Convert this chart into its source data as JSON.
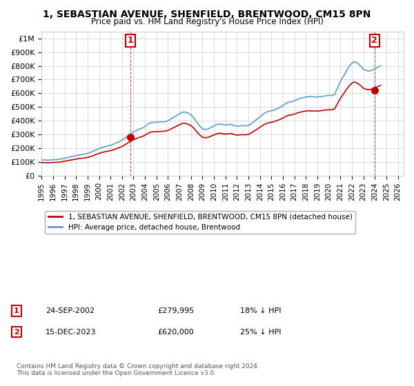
{
  "title": "1, SEBASTIAN AVENUE, SHENFIELD, BRENTWOOD, CM15 8PN",
  "subtitle": "Price paid vs. HM Land Registry's House Price Index (HPI)",
  "ylabel": "",
  "xlim_start": 1995.0,
  "xlim_end": 2026.5,
  "ylim_min": 0,
  "ylim_max": 1050000,
  "yticks": [
    0,
    100000,
    200000,
    300000,
    400000,
    500000,
    600000,
    700000,
    800000,
    900000,
    1000000
  ],
  "ytick_labels": [
    "£0",
    "£100K",
    "£200K",
    "£300K",
    "£400K",
    "£500K",
    "£600K",
    "£700K",
    "£800K",
    "£900K",
    "£1M"
  ],
  "xticks": [
    1995,
    1996,
    1997,
    1998,
    1999,
    2000,
    2001,
    2002,
    2003,
    2004,
    2005,
    2006,
    2007,
    2008,
    2009,
    2010,
    2011,
    2012,
    2013,
    2014,
    2015,
    2016,
    2017,
    2018,
    2019,
    2020,
    2021,
    2022,
    2023,
    2024,
    2025,
    2026
  ],
  "hpi_color": "#5b9bd5",
  "price_color": "#c00000",
  "marker_color": "#c00000",
  "annotation_box_color": "#c00000",
  "grid_color": "#cccccc",
  "background_color": "#ffffff",
  "legend_label_red": "1, SEBASTIAN AVENUE, SHENFIELD, BRENTWOOD, CM15 8PN (detached house)",
  "legend_label_blue": "HPI: Average price, detached house, Brentwood",
  "sale1_label": "1",
  "sale1_date": "24-SEP-2002",
  "sale1_price": "£279,995",
  "sale1_hpi": "18% ↓ HPI",
  "sale1_x": 2002.73,
  "sale1_y": 279995,
  "sale2_label": "2",
  "sale2_date": "15-DEC-2023",
  "sale2_price": "£620,000",
  "sale2_hpi": "25% ↓ HPI",
  "sale2_x": 2023.96,
  "sale2_y": 620000,
  "copyright_text": "Contains HM Land Registry data © Crown copyright and database right 2024.\nThis data is licensed under the Open Government Licence v3.0.",
  "hpi_data": {
    "x": [
      1995.0,
      1995.25,
      1995.5,
      1995.75,
      1996.0,
      1996.25,
      1996.5,
      1996.75,
      1997.0,
      1997.25,
      1997.5,
      1997.75,
      1998.0,
      1998.25,
      1998.5,
      1998.75,
      1999.0,
      1999.25,
      1999.5,
      1999.75,
      2000.0,
      2000.25,
      2000.5,
      2000.75,
      2001.0,
      2001.25,
      2001.5,
      2001.75,
      2002.0,
      2002.25,
      2002.5,
      2002.75,
      2003.0,
      2003.25,
      2003.5,
      2003.75,
      2004.0,
      2004.25,
      2004.5,
      2004.75,
      2005.0,
      2005.25,
      2005.5,
      2005.75,
      2006.0,
      2006.25,
      2006.5,
      2006.75,
      2007.0,
      2007.25,
      2007.5,
      2007.75,
      2008.0,
      2008.25,
      2008.5,
      2008.75,
      2009.0,
      2009.25,
      2009.5,
      2009.75,
      2010.0,
      2010.25,
      2010.5,
      2010.75,
      2011.0,
      2011.25,
      2011.5,
      2011.75,
      2012.0,
      2012.25,
      2012.5,
      2012.75,
      2013.0,
      2013.25,
      2013.5,
      2013.75,
      2014.0,
      2014.25,
      2014.5,
      2014.75,
      2015.0,
      2015.25,
      2015.5,
      2015.75,
      2016.0,
      2016.25,
      2016.5,
      2016.75,
      2017.0,
      2017.25,
      2017.5,
      2017.75,
      2018.0,
      2018.25,
      2018.5,
      2018.75,
      2019.0,
      2019.25,
      2019.5,
      2019.75,
      2020.0,
      2020.25,
      2020.5,
      2020.75,
      2021.0,
      2021.25,
      2021.5,
      2021.75,
      2022.0,
      2022.25,
      2022.5,
      2022.75,
      2023.0,
      2023.25,
      2023.5,
      2023.75,
      2024.0,
      2024.25,
      2024.5
    ],
    "y": [
      113000,
      114000,
      112000,
      113000,
      115000,
      116000,
      118000,
      121000,
      126000,
      131000,
      136000,
      140000,
      145000,
      150000,
      153000,
      156000,
      161000,
      168000,
      177000,
      187000,
      196000,
      204000,
      210000,
      215000,
      220000,
      228000,
      237000,
      247000,
      258000,
      272000,
      288000,
      305000,
      318000,
      328000,
      338000,
      345000,
      358000,
      375000,
      385000,
      388000,
      388000,
      390000,
      392000,
      393000,
      400000,
      412000,
      425000,
      438000,
      450000,
      462000,
      463000,
      455000,
      443000,
      420000,
      390000,
      362000,
      340000,
      335000,
      340000,
      350000,
      362000,
      372000,
      375000,
      372000,
      368000,
      372000,
      372000,
      365000,
      358000,
      362000,
      363000,
      362000,
      365000,
      378000,
      395000,
      412000,
      428000,
      445000,
      460000,
      468000,
      472000,
      478000,
      488000,
      498000,
      510000,
      525000,
      535000,
      538000,
      545000,
      555000,
      563000,
      568000,
      572000,
      576000,
      576000,
      573000,
      572000,
      575000,
      578000,
      582000,
      585000,
      582000,
      592000,
      640000,
      685000,
      722000,
      760000,
      795000,
      820000,
      830000,
      818000,
      800000,
      775000,
      765000,
      762000,
      768000,
      778000,
      790000,
      800000
    ]
  },
  "price_line_data": {
    "x": [
      1995.0,
      1995.25,
      1995.5,
      1995.75,
      1996.0,
      1996.25,
      1996.5,
      1996.75,
      1997.0,
      1997.25,
      1997.5,
      1997.75,
      1998.0,
      1998.25,
      1998.5,
      1998.75,
      1999.0,
      1999.25,
      1999.5,
      1999.75,
      2000.0,
      2000.25,
      2000.5,
      2000.75,
      2001.0,
      2001.25,
      2001.5,
      2001.75,
      2002.0,
      2002.25,
      2002.5,
      2002.75,
      2003.0,
      2003.25,
      2003.5,
      2003.75,
      2004.0,
      2004.25,
      2004.5,
      2004.75,
      2005.0,
      2005.25,
      2005.5,
      2005.75,
      2006.0,
      2006.25,
      2006.5,
      2006.75,
      2007.0,
      2007.25,
      2007.5,
      2007.75,
      2008.0,
      2008.25,
      2008.5,
      2008.75,
      2009.0,
      2009.25,
      2009.5,
      2009.75,
      2010.0,
      2010.25,
      2010.5,
      2010.75,
      2011.0,
      2011.25,
      2011.5,
      2011.75,
      2012.0,
      2012.25,
      2012.5,
      2012.75,
      2013.0,
      2013.25,
      2013.5,
      2013.75,
      2014.0,
      2014.25,
      2014.5,
      2014.75,
      2015.0,
      2015.25,
      2015.5,
      2015.75,
      2016.0,
      2016.25,
      2016.5,
      2016.75,
      2017.0,
      2017.25,
      2017.5,
      2017.75,
      2018.0,
      2018.25,
      2018.5,
      2018.75,
      2019.0,
      2019.25,
      2019.5,
      2019.75,
      2020.0,
      2020.25,
      2020.5,
      2020.75,
      2021.0,
      2021.25,
      2021.5,
      2021.75,
      2022.0,
      2022.25,
      2022.5,
      2022.75,
      2023.0,
      2023.25,
      2023.5,
      2023.75,
      2024.0,
      2024.25,
      2024.5
    ],
    "y": [
      93000,
      94000,
      92000,
      93000,
      95000,
      96000,
      97000,
      100000,
      104000,
      108000,
      112000,
      115000,
      119000,
      123000,
      126000,
      128000,
      132000,
      138000,
      145000,
      154000,
      161000,
      168000,
      173000,
      177000,
      181000,
      187000,
      195000,
      203000,
      212000,
      224000,
      237000,
      251000,
      261000,
      270000,
      278000,
      284000,
      294000,
      308000,
      316000,
      319000,
      319000,
      320000,
      322000,
      323000,
      329000,
      339000,
      349000,
      360000,
      370000,
      380000,
      380000,
      374000,
      364000,
      345000,
      320000,
      297000,
      279000,
      275000,
      279000,
      287000,
      297000,
      305000,
      308000,
      305000,
      302000,
      305000,
      305000,
      300000,
      294000,
      297000,
      298000,
      297000,
      300000,
      311000,
      324000,
      338000,
      352000,
      366000,
      378000,
      384000,
      388000,
      393000,
      401000,
      409000,
      419000,
      431000,
      440000,
      442000,
      448000,
      456000,
      462000,
      467000,
      470000,
      473000,
      470000,
      471000,
      470000,
      472000,
      475000,
      478000,
      481000,
      478000,
      487000,
      526000,
      563000,
      593000,
      624000,
      653000,
      674000,
      682000,
      672000,
      657000,
      637000,
      628000,
      626000,
      631000,
      639000,
      649000,
      657000
    ]
  }
}
